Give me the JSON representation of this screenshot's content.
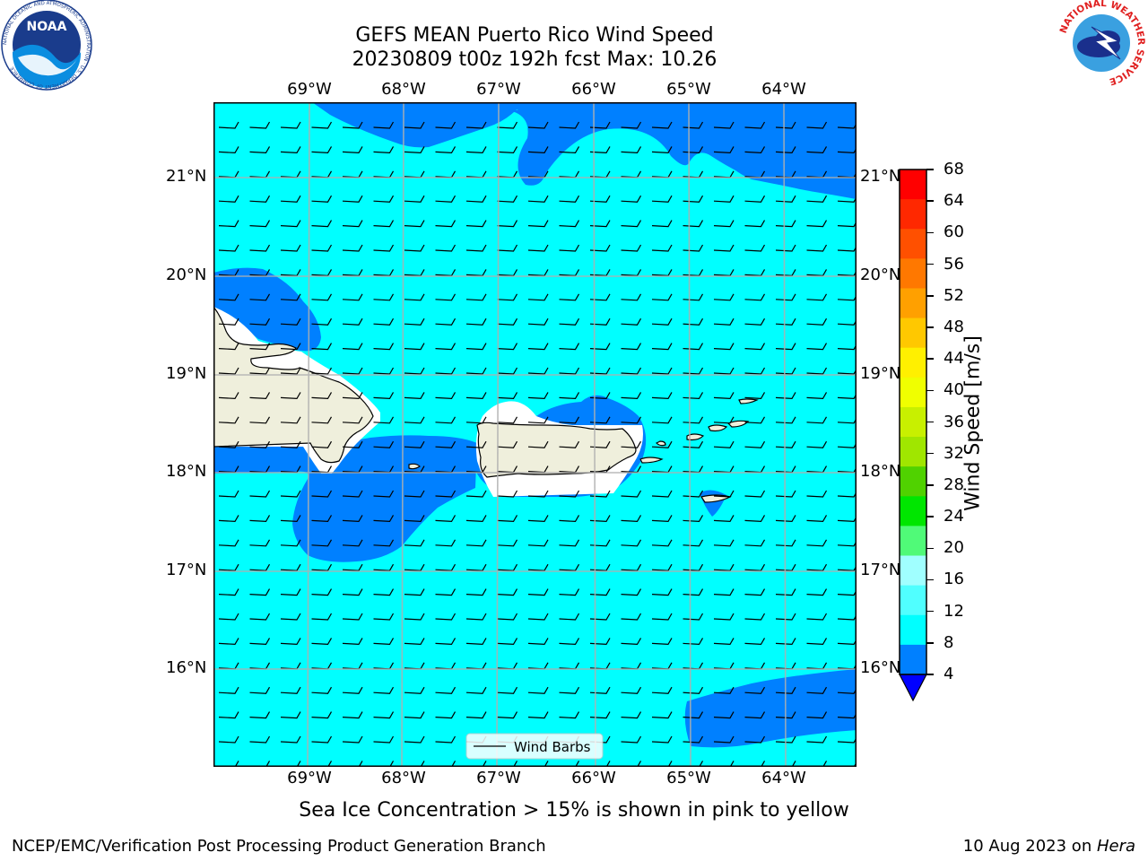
{
  "header": {
    "title_line1": "GEFS MEAN Puerto Rico Wind Speed",
    "title_line2": "20230809 t00z 192h fcst   Max: 10.26"
  },
  "logos": {
    "noaa_text": "NOAA",
    "noaa_ring": "NATIONAL OCEANIC AND ATMOSPHERIC ADMINISTRATION · U.S. DEPARTMENT OF COMMERCE",
    "nws_ring": "NATIONAL WEATHER SERVICE"
  },
  "map": {
    "lon_labels": [
      "69°W",
      "68°W",
      "67°W",
      "66°W",
      "65°W",
      "64°W"
    ],
    "lat_labels": [
      "21°N",
      "20°N",
      "19°N",
      "18°N",
      "17°N",
      "16°N"
    ],
    "legend_label": "Wind Barbs",
    "colors": {
      "land": "#efefdc",
      "sea_4_8": "#0080ff",
      "sea_8_12": "#00ffff",
      "grid": "#b0b0b0"
    }
  },
  "colorbar": {
    "label": "Wind Speed [m/s]",
    "ticks": [
      "68",
      "64",
      "60",
      "56",
      "52",
      "48",
      "44",
      "40",
      "36",
      "32",
      "28",
      "24",
      "20",
      "16",
      "12",
      "8",
      "4"
    ],
    "colors": [
      "#ff0000",
      "#ff2800",
      "#ff5000",
      "#ff7800",
      "#ffa000",
      "#ffc800",
      "#fff000",
      "#f0ff00",
      "#c8f000",
      "#a0e600",
      "#50d200",
      "#00e600",
      "#50fa78",
      "#a0ffff",
      "#50ffff",
      "#00ffff",
      "#0080ff"
    ],
    "extend_color": "#0000ff"
  },
  "footer": {
    "note": "Sea Ice Concentration > 15% is shown in pink to yellow",
    "left": "NCEP/EMC/Verification Post Processing Product Generation Branch",
    "right_prefix": "10 Aug 2023 on ",
    "right_host": "Hera"
  }
}
